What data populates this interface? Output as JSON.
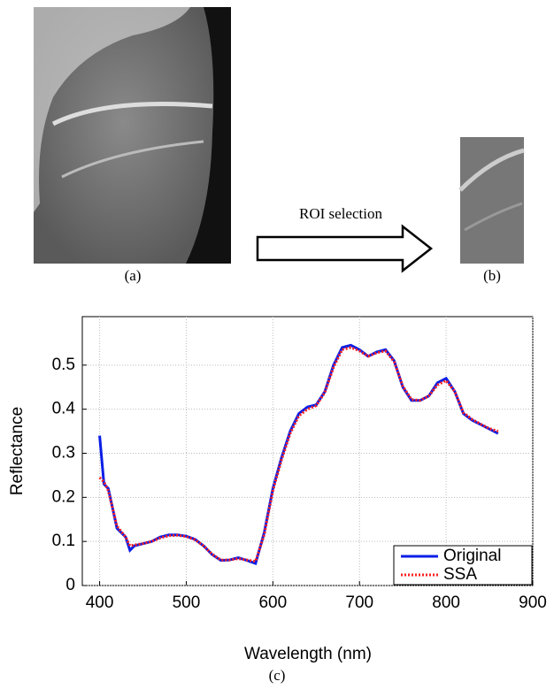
{
  "figure": {
    "arrow_label": "ROI selection",
    "panel_labels": [
      "(a)",
      "(b)",
      "(c)"
    ]
  },
  "chart_data": {
    "type": "line",
    "xlabel": "Wavelength (nm)",
    "ylabel": "Reflectance",
    "x": [
      400,
      405,
      410,
      420,
      430,
      435,
      440,
      450,
      460,
      470,
      480,
      490,
      500,
      510,
      520,
      530,
      540,
      550,
      560,
      570,
      580,
      590,
      600,
      610,
      620,
      630,
      640,
      650,
      660,
      670,
      680,
      690,
      700,
      710,
      720,
      730,
      740,
      750,
      760,
      770,
      780,
      790,
      800,
      810,
      820,
      830,
      840,
      850,
      860
    ],
    "series": [
      {
        "name": "Original",
        "color": "#0a1ee6",
        "style": "solid",
        "values": [
          0.34,
          0.23,
          0.22,
          0.13,
          0.11,
          0.08,
          0.09,
          0.095,
          0.1,
          0.11,
          0.115,
          0.115,
          0.112,
          0.105,
          0.09,
          0.07,
          0.057,
          0.058,
          0.063,
          0.057,
          0.05,
          0.12,
          0.22,
          0.29,
          0.35,
          0.39,
          0.405,
          0.41,
          0.44,
          0.5,
          0.54,
          0.545,
          0.535,
          0.52,
          0.53,
          0.535,
          0.51,
          0.45,
          0.42,
          0.42,
          0.43,
          0.46,
          0.47,
          0.44,
          0.39,
          0.375,
          0.365,
          0.355,
          0.345
        ]
      },
      {
        "name": "SSA",
        "color": "#ff2020",
        "style": "dotted",
        "values": [
          0.245,
          0.235,
          0.215,
          0.135,
          0.11,
          0.09,
          0.092,
          0.095,
          0.1,
          0.108,
          0.113,
          0.114,
          0.111,
          0.104,
          0.09,
          0.071,
          0.058,
          0.058,
          0.061,
          0.058,
          0.055,
          0.115,
          0.215,
          0.285,
          0.345,
          0.385,
          0.4,
          0.408,
          0.438,
          0.495,
          0.535,
          0.54,
          0.532,
          0.52,
          0.528,
          0.532,
          0.508,
          0.452,
          0.422,
          0.42,
          0.43,
          0.455,
          0.465,
          0.44,
          0.392,
          0.377,
          0.366,
          0.356,
          0.35
        ]
      }
    ],
    "xlim": [
      380,
      900
    ],
    "ylim": [
      0,
      0.61
    ],
    "xticks": [
      400,
      500,
      600,
      700,
      800,
      900
    ],
    "yticks": [
      0,
      0.1,
      0.2,
      0.3,
      0.4,
      0.5
    ],
    "grid": true,
    "legend": "lower-right"
  }
}
